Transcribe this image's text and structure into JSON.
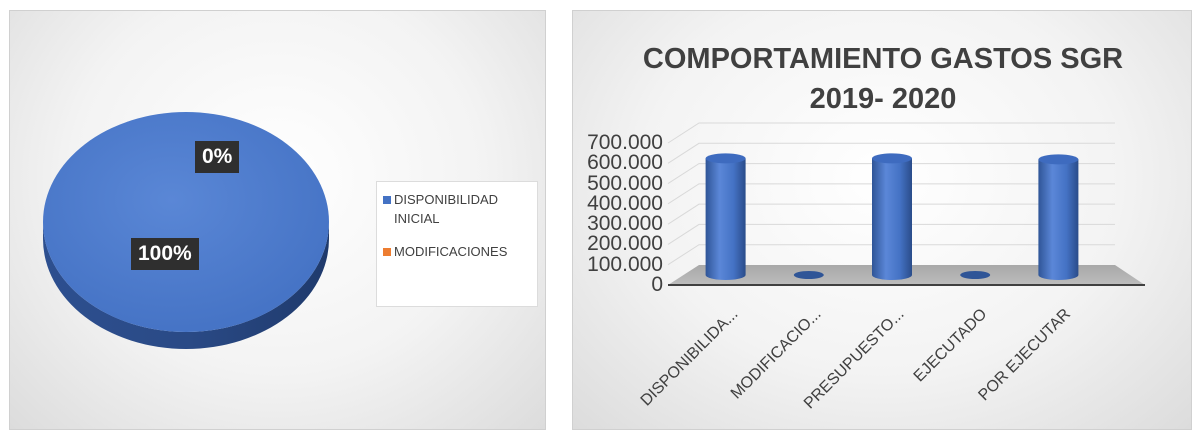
{
  "pie_chart": {
    "labels": [
      {
        "text": "0%"
      },
      {
        "text": "100%"
      }
    ],
    "legend": [
      {
        "label": "DISPONIBILIDAD INICIAL",
        "color": "#4472c4"
      },
      {
        "label": "MODIFICACIONES",
        "color": "#ed7d31"
      }
    ]
  },
  "bar_chart": {
    "title_line1": "COMPORTAMIENTO  GASTOS  SGR",
    "title_line2": "2019- 2020",
    "y_ticks": [
      "700.000",
      "600.000",
      "500.000",
      "400.000",
      "300.000",
      "200.000",
      "100.000",
      "0"
    ],
    "x_ticks": [
      "DISPONIBILIDA...",
      "MODIFICACIO...",
      "PRESUPUESTO...",
      "EJECUTADO",
      "POR EJECUTAR"
    ],
    "bar_color": "#4472c4"
  },
  "chart_data": [
    {
      "type": "pie",
      "categories": [
        "DISPONIBILIDAD INICIAL",
        "MODIFICACIONES"
      ],
      "values": [
        100,
        0
      ],
      "data_labels": [
        "100%",
        "0%"
      ],
      "legend_position": "right",
      "style": "3d"
    },
    {
      "type": "bar",
      "title": "COMPORTAMIENTO  GASTOS  SGR 2019- 2020",
      "categories": [
        "DISPONIBILIDA...",
        "MODIFICACIO...",
        "PRESUPUESTO...",
        "EJECUTADO",
        "POR EJECUTAR"
      ],
      "values": [
        575000,
        0,
        575000,
        0,
        570000
      ],
      "ylim": [
        0,
        700000
      ],
      "grid": true,
      "style": "3d-cylinder"
    }
  ]
}
